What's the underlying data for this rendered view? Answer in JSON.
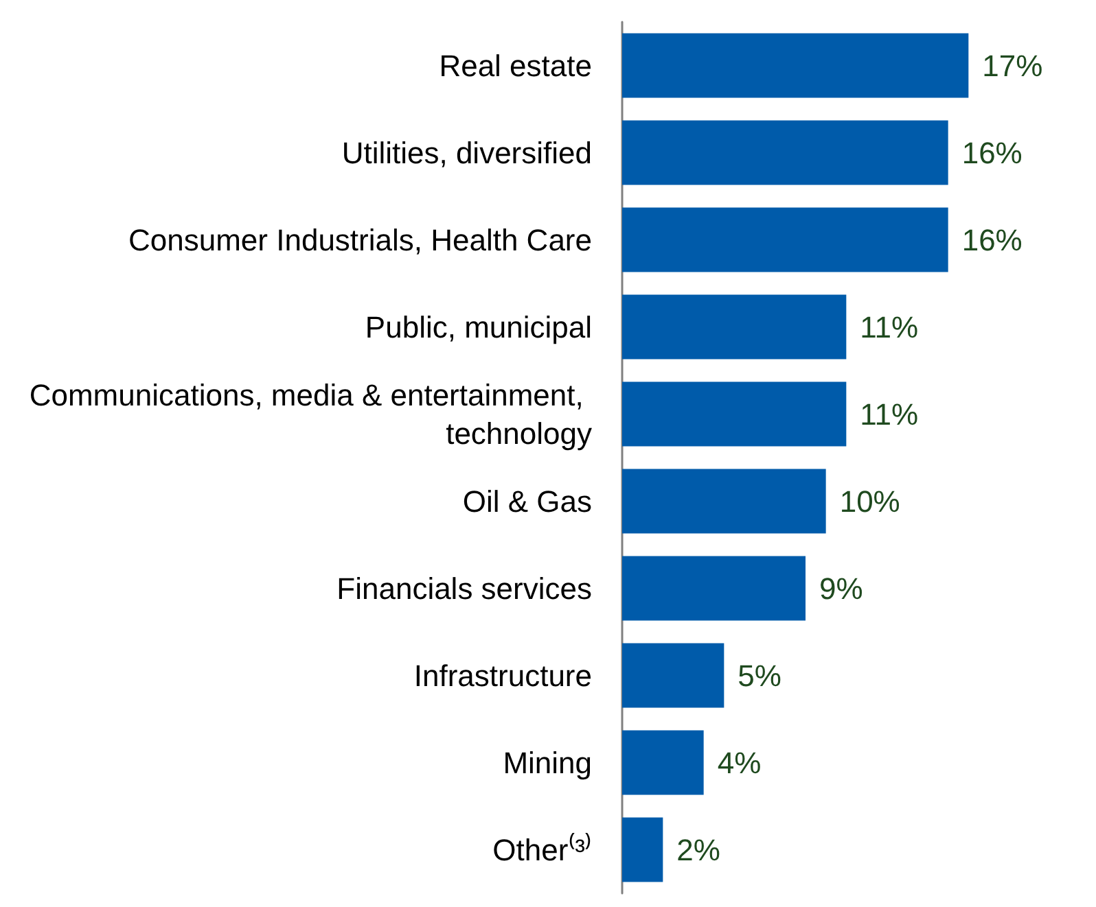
{
  "chart_data": {
    "type": "bar",
    "orientation": "horizontal",
    "categories": [
      "Real estate",
      "Utilities, diversified",
      "Consumer Industrials, Health Care",
      "Public, municipal",
      "Communications, media & entertainment, technology",
      "Oil & Gas",
      "Financials services",
      "Infrastructure",
      "Mining",
      "Other⁽³⁾"
    ],
    "values": [
      17,
      16,
      16,
      11,
      11,
      10,
      9,
      5,
      4,
      2
    ],
    "value_labels": [
      "17%",
      "16%",
      "16%",
      "11%",
      "11%",
      "10%",
      "9%",
      "5%",
      "4%",
      "2%"
    ],
    "color": "#005baa"
  }
}
